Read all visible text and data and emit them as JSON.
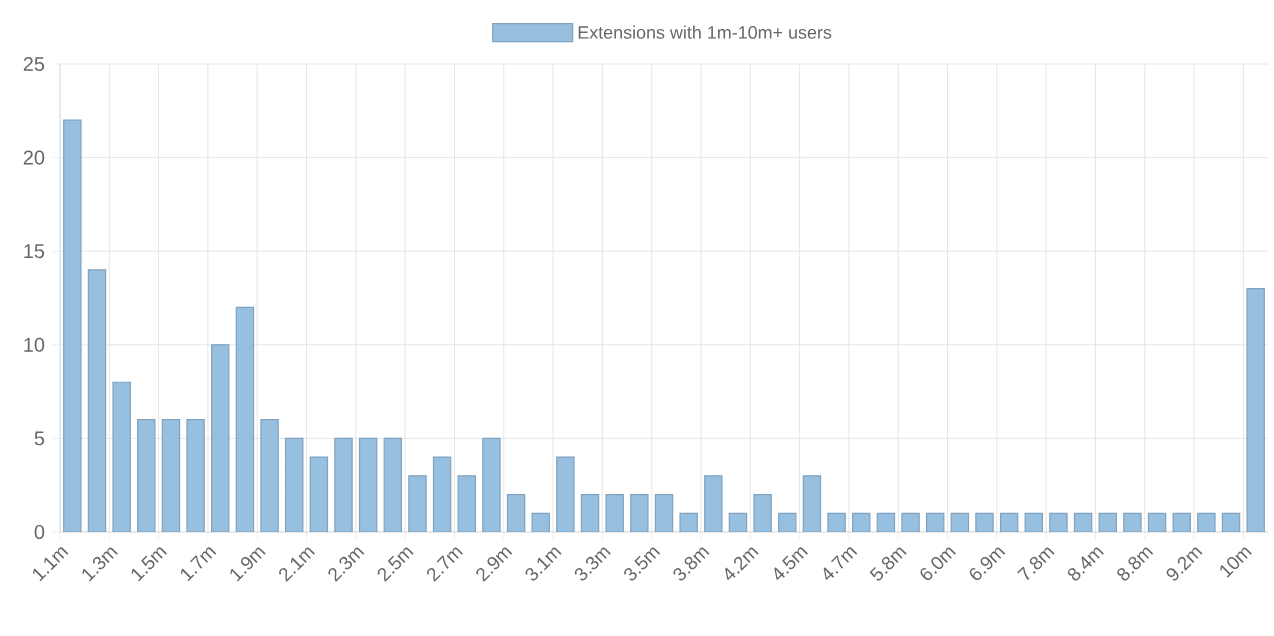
{
  "chart_data": {
    "type": "bar",
    "categories": [
      "1.1m",
      null,
      "1.3m",
      null,
      "1.5m",
      null,
      "1.7m",
      null,
      "1.9m",
      null,
      "2.1m",
      null,
      "2.3m",
      null,
      "2.5m",
      null,
      "2.7m",
      null,
      "2.9m",
      null,
      "3.1m",
      null,
      "3.3m",
      null,
      "3.5m",
      null,
      "3.8m",
      null,
      "4.2m",
      null,
      "4.5m",
      null,
      "4.7m",
      null,
      "5.8m",
      null,
      "6.0m",
      null,
      "6.9m",
      null,
      "7.8m",
      null,
      "8.4m",
      null,
      "8.8m",
      null,
      "9.2m",
      null,
      "10m"
    ],
    "series": [
      {
        "name": "Extensions with 1m-10m+ users",
        "color": "#97bfdf",
        "values": [
          22,
          14,
          8,
          6,
          6,
          6,
          10,
          12,
          6,
          5,
          4,
          5,
          5,
          5,
          3,
          4,
          3,
          5,
          2,
          1,
          4,
          2,
          2,
          2,
          2,
          1,
          3,
          1,
          2,
          1,
          3,
          1,
          1,
          1,
          1,
          1,
          1,
          1,
          1,
          1,
          1,
          1,
          1,
          1,
          1,
          1,
          1,
          1,
          13
        ]
      }
    ],
    "ylim": [
      0,
      25
    ],
    "yticks": [
      0,
      5,
      10,
      15,
      20,
      25
    ],
    "grid": true,
    "legend": "top"
  }
}
